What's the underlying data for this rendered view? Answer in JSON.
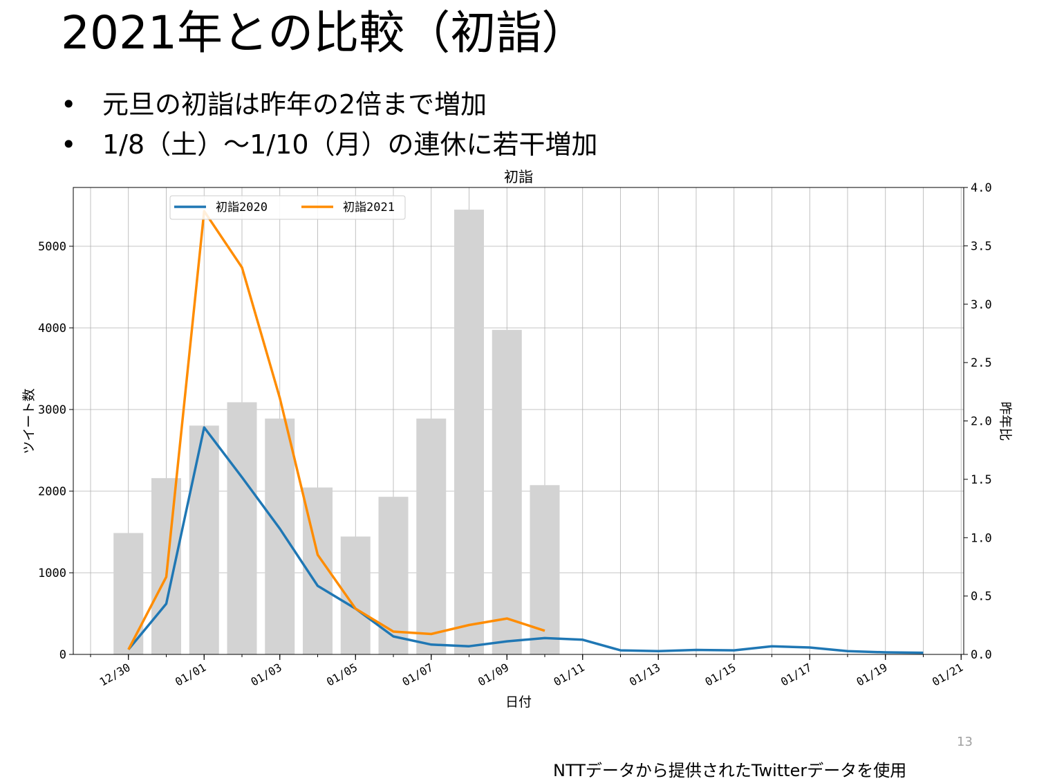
{
  "slide": {
    "title": "2021年との比較（初詣）",
    "bullets": [
      "元旦の初詣は昨年の2倍まで増加",
      "1/8（土）～1/10（月）の連休に若干増加"
    ],
    "bullet_symbol": "•",
    "page_number": "13",
    "credit": "NTTデータから提供されたTwitterデータを使用"
  },
  "chart_data": {
    "type": "bar",
    "title": "初詣",
    "xlabel": "日付",
    "ylabel": "ツイート数",
    "y2label": "昨年比",
    "x_tick_labels": [
      "12/30",
      "01/01",
      "01/03",
      "01/05",
      "01/07",
      "01/09",
      "01/11",
      "01/13",
      "01/15",
      "01/17",
      "01/19",
      "01/21"
    ],
    "y_ticks": [
      "0",
      "1000",
      "2000",
      "3000",
      "4000",
      "5000"
    ],
    "y2_ticks": [
      "0.0",
      "0.5",
      "1.0",
      "1.5",
      "2.0",
      "2.5",
      "3.0",
      "3.5",
      "4.0"
    ],
    "ylim": [
      0,
      5720
    ],
    "y2lim": [
      0,
      4.0
    ],
    "grid": true,
    "legend_position": "upper-left",
    "bars": {
      "axis": "y2",
      "color": "#d3d3d3",
      "dates": [
        "12/30",
        "12/31",
        "01/01",
        "01/02",
        "01/03",
        "01/04",
        "01/05",
        "01/06",
        "01/07",
        "01/08",
        "01/09",
        "01/10"
      ],
      "values": [
        1.04,
        1.51,
        1.96,
        2.16,
        2.02,
        1.43,
        1.01,
        1.35,
        2.02,
        3.81,
        2.78,
        1.45
      ]
    },
    "series": [
      {
        "name": "初詣2020",
        "color": "#1f77b4",
        "dates": [
          "12/30",
          "12/31",
          "01/01",
          "01/02",
          "01/03",
          "01/04",
          "01/05",
          "01/06",
          "01/07",
          "01/08",
          "01/09",
          "01/10",
          "01/11",
          "01/12",
          "01/13",
          "01/14",
          "01/15",
          "01/16",
          "01/17",
          "01/18",
          "01/19",
          "01/20"
        ],
        "values": [
          60,
          620,
          2780,
          2170,
          1540,
          840,
          560,
          220,
          120,
          100,
          160,
          200,
          180,
          50,
          40,
          55,
          50,
          100,
          85,
          40,
          25,
          20
        ]
      },
      {
        "name": "初詣2021",
        "color": "#ff8c00",
        "dates": [
          "12/30",
          "12/31",
          "01/01",
          "01/02",
          "01/03",
          "01/04",
          "01/05",
          "01/06",
          "01/07",
          "01/08",
          "01/09",
          "01/10"
        ],
        "values": [
          60,
          950,
          5430,
          4740,
          3140,
          1220,
          560,
          280,
          250,
          360,
          440,
          290
        ]
      }
    ]
  }
}
